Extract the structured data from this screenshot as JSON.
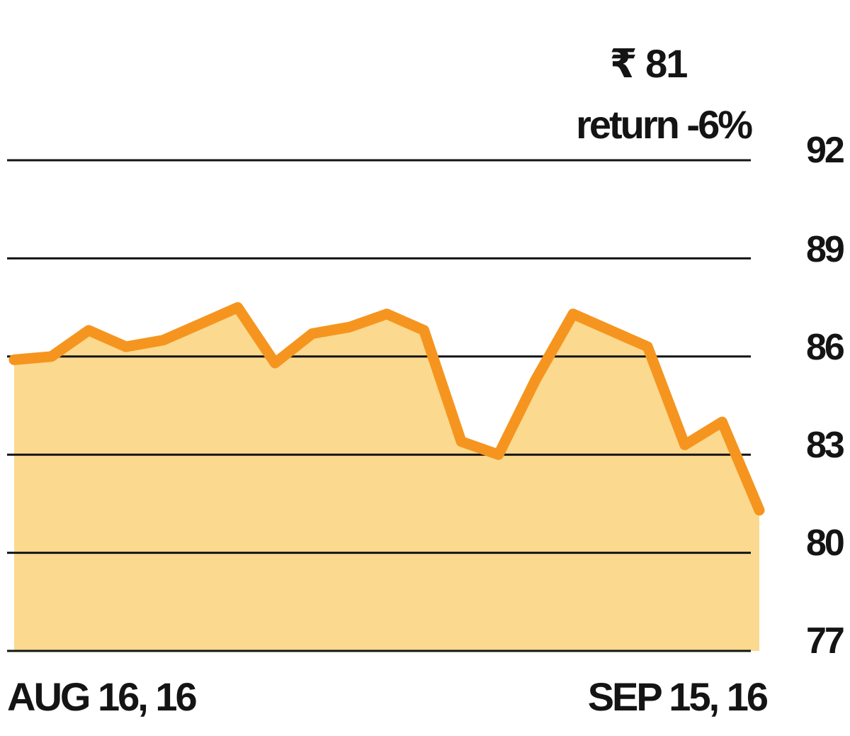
{
  "annotation": {
    "price": "₹ 81",
    "return": "return -6%"
  },
  "colors": {
    "line": "#f5951f",
    "fill": "#fbd98f",
    "grid": "#141414",
    "text": "#141414"
  },
  "chart_data": {
    "type": "area",
    "x_tick_labels": [
      "AUG 16, 16",
      "SEP 15, 16"
    ],
    "y_tick_labels": [
      "92",
      "89",
      "86",
      "83",
      "80",
      "77"
    ],
    "ylim": [
      77,
      92
    ],
    "grid": true,
    "series": [
      {
        "values": [
          85.9,
          86.0,
          86.8,
          86.3,
          86.5,
          87.0,
          87.5,
          85.8,
          86.7,
          86.9,
          87.3,
          86.8,
          83.4,
          83.0,
          85.3,
          87.3,
          86.8,
          86.3,
          83.3,
          84.0,
          81.3
        ]
      }
    ]
  }
}
